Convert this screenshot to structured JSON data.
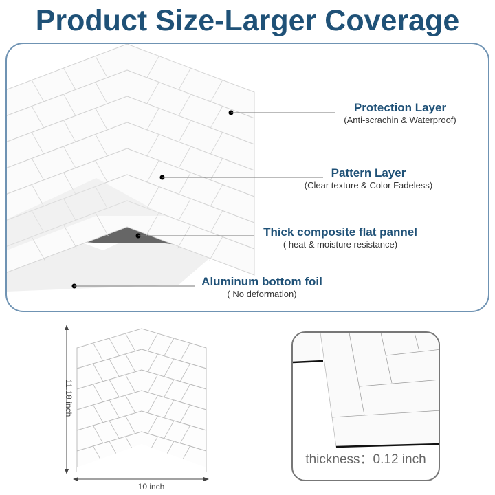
{
  "title": "Product Size-Larger Coverage",
  "layers": [
    {
      "name": "Protection Layer",
      "desc": "(Anti-scrachin & Waterproof)"
    },
    {
      "name": "Pattern Layer",
      "desc": "(Clear texture & Color Fadeless)"
    },
    {
      "name": "Thick composite flat pannel",
      "desc": "( heat & moisture resistance)"
    },
    {
      "name": "Aluminum bottom foil",
      "desc": "( No deformation)"
    }
  ],
  "dimensions": {
    "height": "11.18 inch",
    "width": "10 inch"
  },
  "thickness": "thickness：0.12 inch",
  "colors": {
    "title": "#1f5177",
    "panel_border": "#6f93b3",
    "composite": "#666666"
  }
}
